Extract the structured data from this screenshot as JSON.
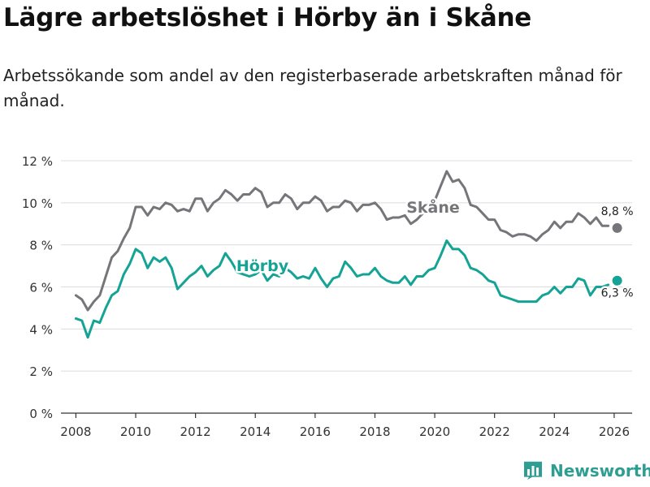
{
  "title": "Lägre arbetslöshet i Hörby än i Skåne",
  "subtitle": "Arbetssökande som andel av den registerbaserade arbetskraften månad för månad.",
  "brand": {
    "label": "Newsworthy",
    "icon": "newsworthy-logo-icon",
    "color": "#2f9e92"
  },
  "chart_data": {
    "type": "line",
    "title": "Lägre arbetslöshet i Hörby än i Skåne",
    "xlabel": "",
    "ylabel": "",
    "xlim": [
      2007.5,
      2026.6
    ],
    "ylim": [
      0,
      12
    ],
    "x_ticks": [
      2008,
      2010,
      2012,
      2014,
      2016,
      2018,
      2020,
      2022,
      2024,
      2026
    ],
    "y_ticks": [
      0,
      2,
      4,
      6,
      8,
      10,
      12
    ],
    "y_tick_labels": [
      "0 %",
      "2 %",
      "4 %",
      "6 %",
      "8 %",
      "10 %",
      "12 %"
    ],
    "grid": "horizontal",
    "legend": "none",
    "series": [
      {
        "name": "Skåne",
        "color": "#76767a",
        "end_label": "8,8 %",
        "points": [
          [
            2008.0,
            5.6
          ],
          [
            2008.2,
            5.4
          ],
          [
            2008.4,
            4.9
          ],
          [
            2008.6,
            5.3
          ],
          [
            2008.8,
            5.6
          ],
          [
            2009.0,
            6.5
          ],
          [
            2009.2,
            7.4
          ],
          [
            2009.4,
            7.7
          ],
          [
            2009.6,
            8.3
          ],
          [
            2009.8,
            8.8
          ],
          [
            2010.0,
            9.8
          ],
          [
            2010.2,
            9.8
          ],
          [
            2010.4,
            9.4
          ],
          [
            2010.6,
            9.8
          ],
          [
            2010.8,
            9.7
          ],
          [
            2011.0,
            10.0
          ],
          [
            2011.2,
            9.9
          ],
          [
            2011.4,
            9.6
          ],
          [
            2011.6,
            9.7
          ],
          [
            2011.8,
            9.6
          ],
          [
            2012.0,
            10.2
          ],
          [
            2012.2,
            10.2
          ],
          [
            2012.4,
            9.6
          ],
          [
            2012.6,
            10.0
          ],
          [
            2012.8,
            10.2
          ],
          [
            2013.0,
            10.6
          ],
          [
            2013.2,
            10.4
          ],
          [
            2013.4,
            10.1
          ],
          [
            2013.6,
            10.4
          ],
          [
            2013.8,
            10.4
          ],
          [
            2014.0,
            10.7
          ],
          [
            2014.2,
            10.5
          ],
          [
            2014.4,
            9.8
          ],
          [
            2014.6,
            10.0
          ],
          [
            2014.8,
            10.0
          ],
          [
            2015.0,
            10.4
          ],
          [
            2015.2,
            10.2
          ],
          [
            2015.4,
            9.7
          ],
          [
            2015.6,
            10.0
          ],
          [
            2015.8,
            10.0
          ],
          [
            2016.0,
            10.3
          ],
          [
            2016.2,
            10.1
          ],
          [
            2016.4,
            9.6
          ],
          [
            2016.6,
            9.8
          ],
          [
            2016.8,
            9.8
          ],
          [
            2017.0,
            10.1
          ],
          [
            2017.2,
            10.0
          ],
          [
            2017.4,
            9.6
          ],
          [
            2017.6,
            9.9
          ],
          [
            2017.8,
            9.9
          ],
          [
            2018.0,
            10.0
          ],
          [
            2018.2,
            9.7
          ],
          [
            2018.4,
            9.2
          ],
          [
            2018.6,
            9.3
          ],
          [
            2018.8,
            9.3
          ],
          [
            2019.0,
            9.4
          ],
          [
            2019.2,
            9.0
          ],
          [
            2019.4,
            9.2
          ],
          [
            2019.6,
            9.5
          ],
          [
            2019.8,
            9.7
          ],
          [
            2020.0,
            10.1
          ],
          [
            2020.2,
            10.8
          ],
          [
            2020.4,
            11.5
          ],
          [
            2020.6,
            11.0
          ],
          [
            2020.8,
            11.1
          ],
          [
            2021.0,
            10.7
          ],
          [
            2021.2,
            9.9
          ],
          [
            2021.4,
            9.8
          ],
          [
            2021.6,
            9.5
          ],
          [
            2021.8,
            9.2
          ],
          [
            2022.0,
            9.2
          ],
          [
            2022.2,
            8.7
          ],
          [
            2022.4,
            8.6
          ],
          [
            2022.6,
            8.4
          ],
          [
            2022.8,
            8.5
          ],
          [
            2023.0,
            8.5
          ],
          [
            2023.2,
            8.4
          ],
          [
            2023.4,
            8.2
          ],
          [
            2023.6,
            8.5
          ],
          [
            2023.8,
            8.7
          ],
          [
            2024.0,
            9.1
          ],
          [
            2024.2,
            8.8
          ],
          [
            2024.4,
            9.1
          ],
          [
            2024.6,
            9.1
          ],
          [
            2024.8,
            9.5
          ],
          [
            2025.0,
            9.3
          ],
          [
            2025.2,
            9.0
          ],
          [
            2025.4,
            9.3
          ],
          [
            2025.6,
            8.9
          ],
          [
            2025.8,
            8.9
          ],
          [
            2026.1,
            8.8
          ]
        ]
      },
      {
        "name": "Hörby",
        "color": "#14a394",
        "end_label": "6,3 %",
        "points": [
          [
            2008.0,
            4.5
          ],
          [
            2008.2,
            4.4
          ],
          [
            2008.4,
            3.6
          ],
          [
            2008.6,
            4.4
          ],
          [
            2008.8,
            4.3
          ],
          [
            2009.0,
            5.0
          ],
          [
            2009.2,
            5.6
          ],
          [
            2009.4,
            5.8
          ],
          [
            2009.6,
            6.6
          ],
          [
            2009.8,
            7.1
          ],
          [
            2010.0,
            7.8
          ],
          [
            2010.2,
            7.6
          ],
          [
            2010.4,
            6.9
          ],
          [
            2010.6,
            7.4
          ],
          [
            2010.8,
            7.2
          ],
          [
            2011.0,
            7.4
          ],
          [
            2011.2,
            6.9
          ],
          [
            2011.4,
            5.9
          ],
          [
            2011.6,
            6.2
          ],
          [
            2011.8,
            6.5
          ],
          [
            2012.0,
            6.7
          ],
          [
            2012.2,
            7.0
          ],
          [
            2012.4,
            6.5
          ],
          [
            2012.6,
            6.8
          ],
          [
            2012.8,
            7.0
          ],
          [
            2013.0,
            7.6
          ],
          [
            2013.2,
            7.2
          ],
          [
            2013.4,
            6.7
          ],
          [
            2013.6,
            6.6
          ],
          [
            2013.8,
            6.5
          ],
          [
            2014.0,
            6.6
          ],
          [
            2014.2,
            6.8
          ],
          [
            2014.4,
            6.3
          ],
          [
            2014.6,
            6.6
          ],
          [
            2014.8,
            6.5
          ],
          [
            2015.0,
            6.9
          ],
          [
            2015.2,
            6.7
          ],
          [
            2015.4,
            6.4
          ],
          [
            2015.6,
            6.5
          ],
          [
            2015.8,
            6.4
          ],
          [
            2016.0,
            6.9
          ],
          [
            2016.2,
            6.4
          ],
          [
            2016.4,
            6.0
          ],
          [
            2016.6,
            6.4
          ],
          [
            2016.8,
            6.5
          ],
          [
            2017.0,
            7.2
          ],
          [
            2017.2,
            6.9
          ],
          [
            2017.4,
            6.5
          ],
          [
            2017.6,
            6.6
          ],
          [
            2017.8,
            6.6
          ],
          [
            2018.0,
            6.9
          ],
          [
            2018.2,
            6.5
          ],
          [
            2018.4,
            6.3
          ],
          [
            2018.6,
            6.2
          ],
          [
            2018.8,
            6.2
          ],
          [
            2019.0,
            6.5
          ],
          [
            2019.2,
            6.1
          ],
          [
            2019.4,
            6.5
          ],
          [
            2019.6,
            6.5
          ],
          [
            2019.8,
            6.8
          ],
          [
            2020.0,
            6.9
          ],
          [
            2020.2,
            7.5
          ],
          [
            2020.4,
            8.2
          ],
          [
            2020.6,
            7.8
          ],
          [
            2020.8,
            7.8
          ],
          [
            2021.0,
            7.5
          ],
          [
            2021.2,
            6.9
          ],
          [
            2021.4,
            6.8
          ],
          [
            2021.6,
            6.6
          ],
          [
            2021.8,
            6.3
          ],
          [
            2022.0,
            6.2
          ],
          [
            2022.2,
            5.6
          ],
          [
            2022.4,
            5.5
          ],
          [
            2022.6,
            5.4
          ],
          [
            2022.8,
            5.3
          ],
          [
            2023.0,
            5.3
          ],
          [
            2023.2,
            5.3
          ],
          [
            2023.4,
            5.3
          ],
          [
            2023.6,
            5.6
          ],
          [
            2023.8,
            5.7
          ],
          [
            2024.0,
            6.0
          ],
          [
            2024.2,
            5.7
          ],
          [
            2024.4,
            6.0
          ],
          [
            2024.6,
            6.0
          ],
          [
            2024.8,
            6.4
          ],
          [
            2025.0,
            6.3
          ],
          [
            2025.2,
            5.6
          ],
          [
            2025.4,
            6.0
          ],
          [
            2025.6,
            6.0
          ],
          [
            2025.8,
            6.1
          ],
          [
            2026.1,
            6.3
          ]
        ]
      }
    ]
  }
}
